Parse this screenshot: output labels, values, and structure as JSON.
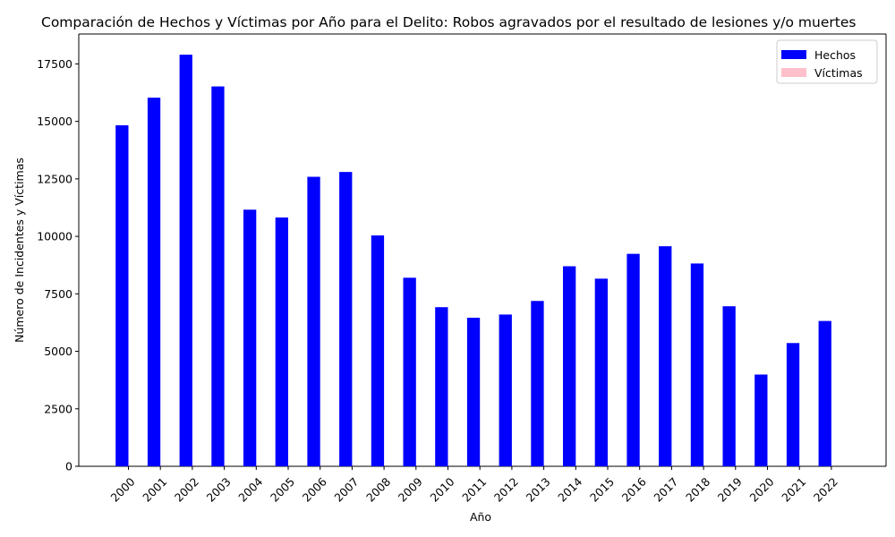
{
  "chart_data": {
    "type": "bar",
    "title": "Comparación de Hechos y Víctimas por Año para el Delito: Robos agravados por el resultado de lesiones y/o muertes",
    "xlabel": "Año",
    "ylabel": "Número de Incidentes y Víctimas",
    "categories": [
      "2000",
      "2001",
      "2002",
      "2003",
      "2004",
      "2005",
      "2006",
      "2007",
      "2008",
      "2009",
      "2010",
      "2011",
      "2012",
      "2013",
      "2014",
      "2015",
      "2016",
      "2017",
      "2018",
      "2019",
      "2020",
      "2021",
      "2022"
    ],
    "series": [
      {
        "name": "Hechos",
        "color": "#0000ff",
        "values": [
          14830,
          16030,
          17900,
          16520,
          11160,
          10820,
          12590,
          12800,
          10040,
          8200,
          6920,
          6460,
          6600,
          7190,
          8700,
          8160,
          9240,
          9570,
          8820,
          6960,
          3990,
          5360,
          6320
        ]
      },
      {
        "name": "Víctimas",
        "color": "#ffc0cb",
        "values": [
          0,
          0,
          0,
          0,
          0,
          0,
          0,
          0,
          0,
          0,
          0,
          0,
          0,
          0,
          0,
          0,
          0,
          0,
          0,
          0,
          0,
          0,
          0
        ]
      }
    ],
    "ylim": [
      0,
      18800
    ],
    "yticks": [
      0,
      2500,
      5000,
      7500,
      10000,
      12500,
      15000,
      17500
    ],
    "ytick_labels": [
      "0",
      "2500",
      "5000",
      "7500",
      "10000",
      "12500",
      "15000",
      "17500"
    ],
    "legend_position": "top-right",
    "grid": false
  }
}
